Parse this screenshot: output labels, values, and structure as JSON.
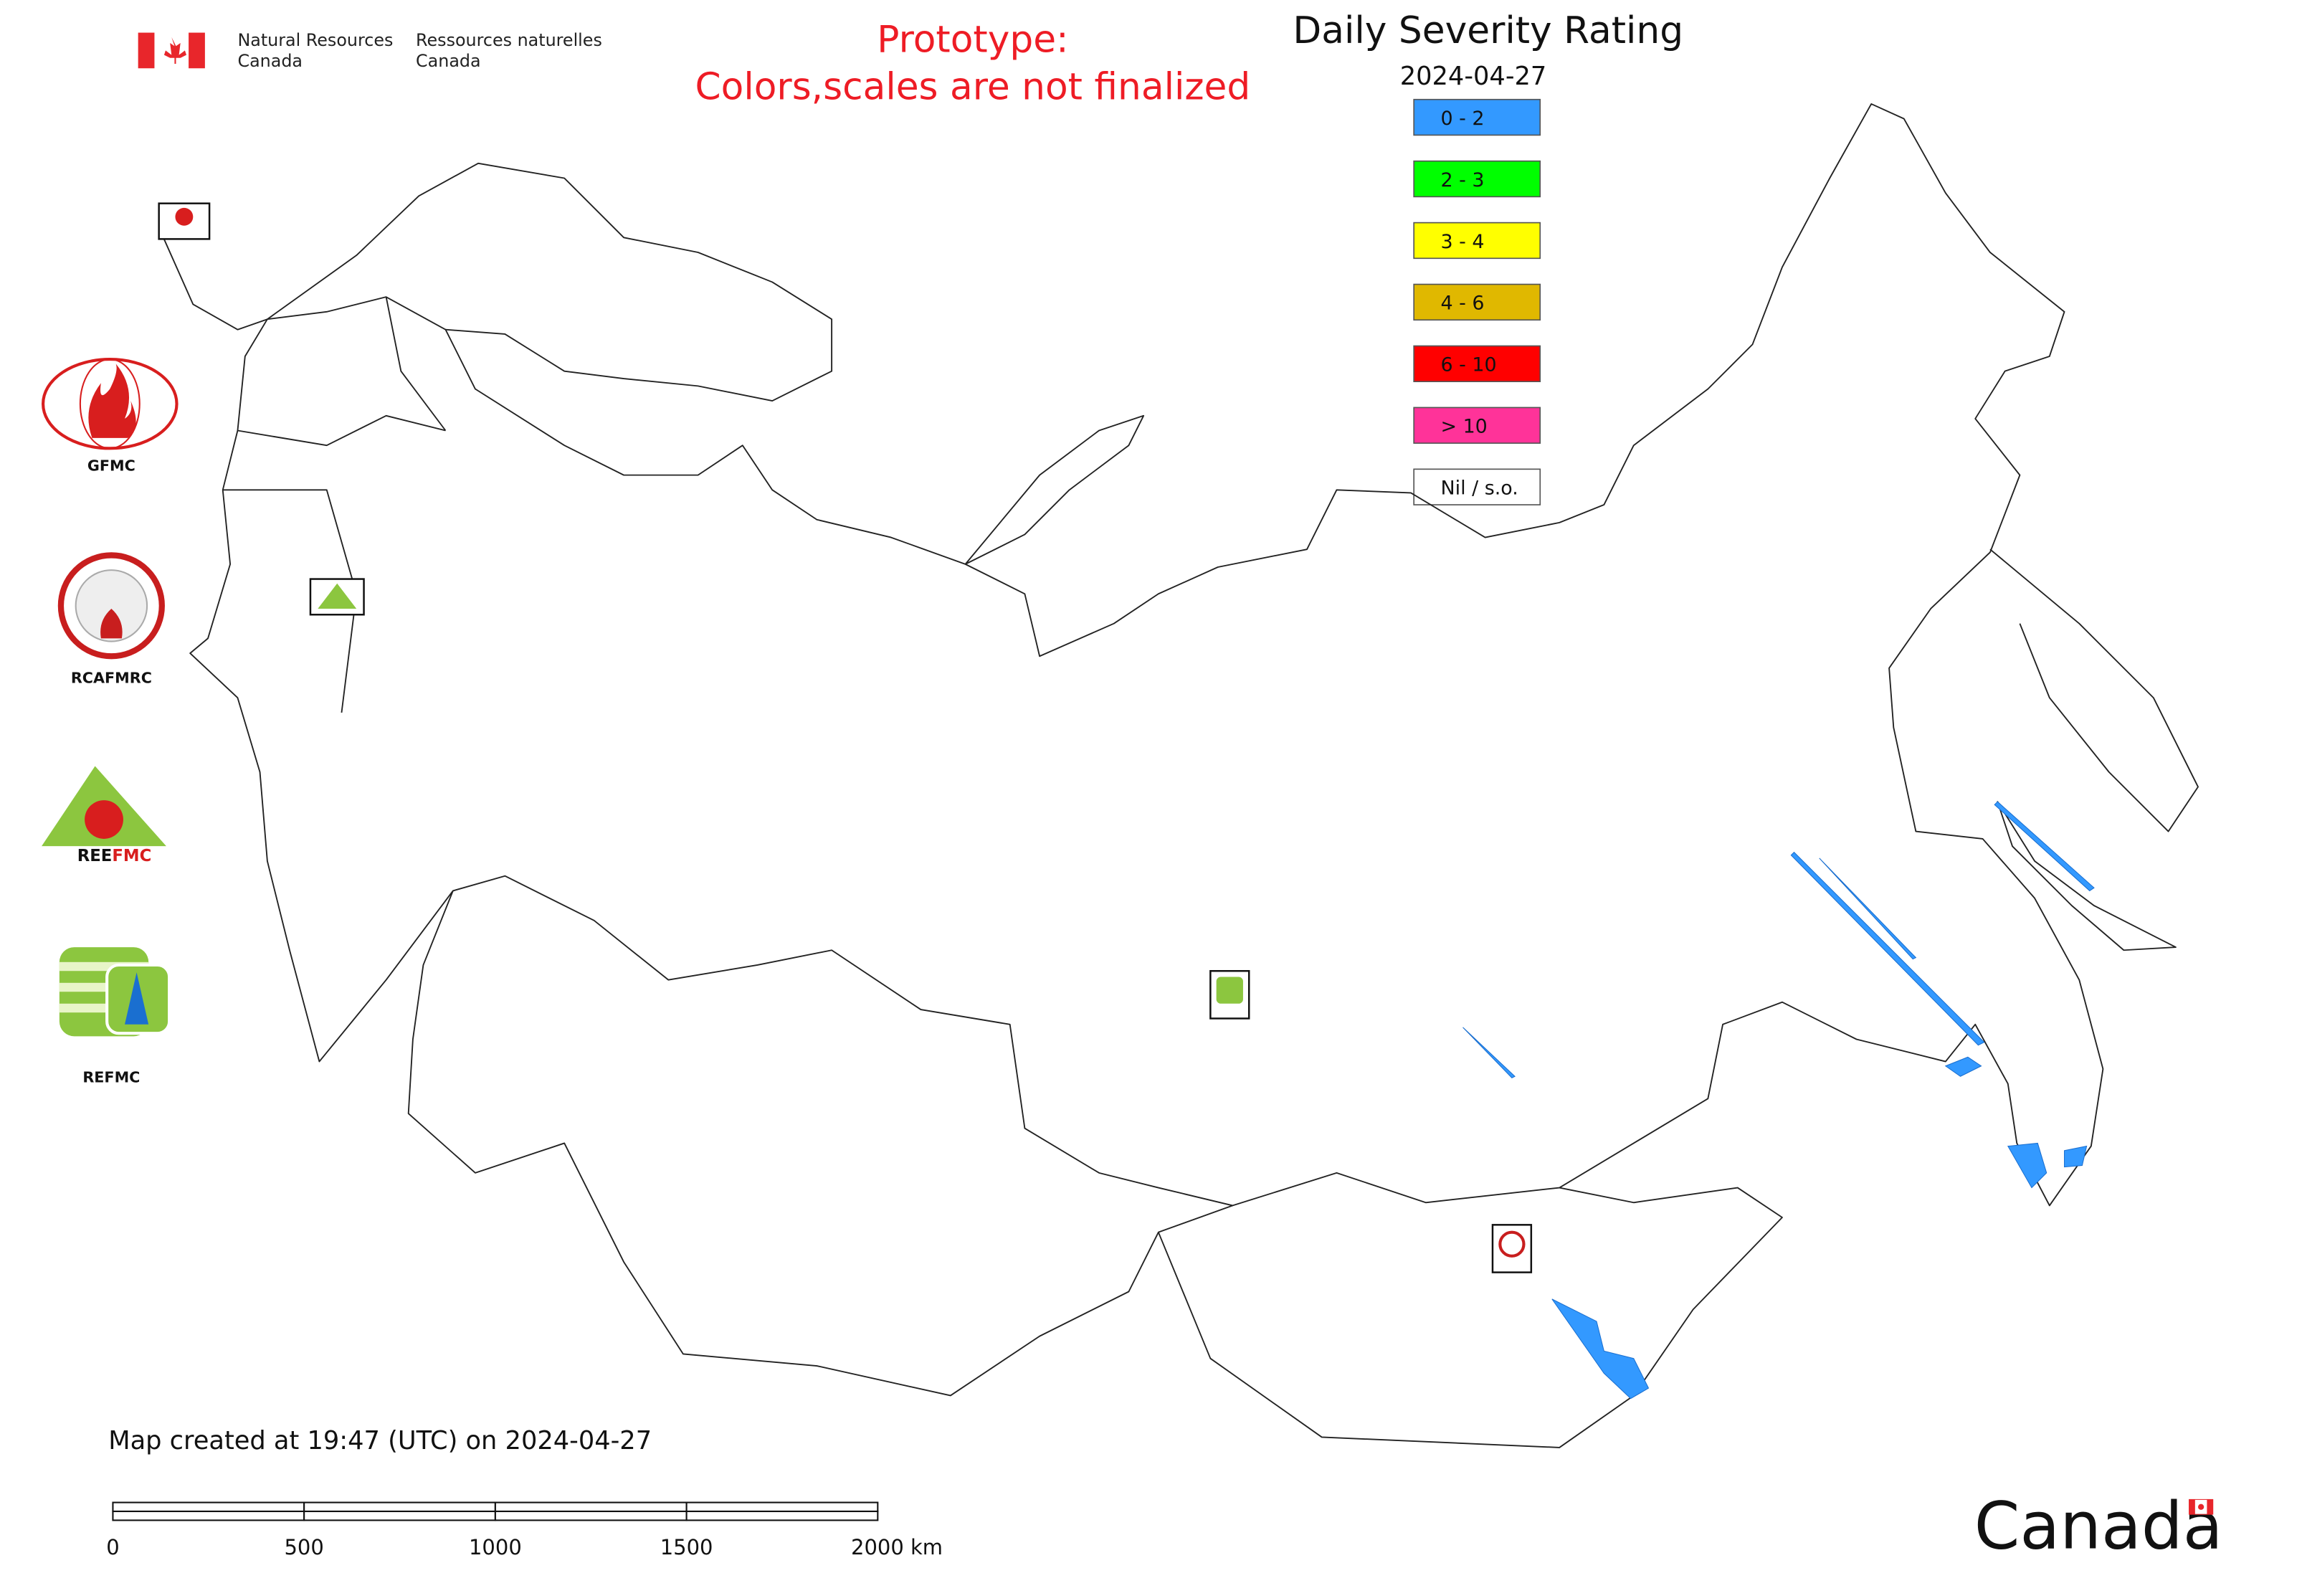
{
  "header": {
    "department_en": [
      "Natural Resources",
      "Canada"
    ],
    "department_fr": [
      "Ressources naturelles",
      "Canada"
    ]
  },
  "notice": [
    "Prototype:",
    "Colors,scales are not finalized"
  ],
  "title": "Daily Severity Rating",
  "date": "2024-04-27",
  "legend": [
    {
      "label": "0 - 2",
      "color": "#3399ff"
    },
    {
      "label": "2 - 3",
      "color": "#00ff00"
    },
    {
      "label": "3 - 4",
      "color": "#ffff00"
    },
    {
      "label": "4 - 6",
      "color": "#e0b800"
    },
    {
      "label": "6 - 10",
      "color": "#ff0000"
    },
    {
      "label": "> 10",
      "color": "#ff3399"
    },
    {
      "label": "Nil / s.o.",
      "color": "#ffffff"
    }
  ],
  "logos": [
    "GFMC",
    "RCAFMRC",
    "REFMC"
  ],
  "footer": "Map created at 19:47 (UTC) on 2024-04-27",
  "scale_bar": [
    "0",
    "500",
    "1000",
    "1500",
    "2000 km"
  ],
  "wordmark": "Canada"
}
